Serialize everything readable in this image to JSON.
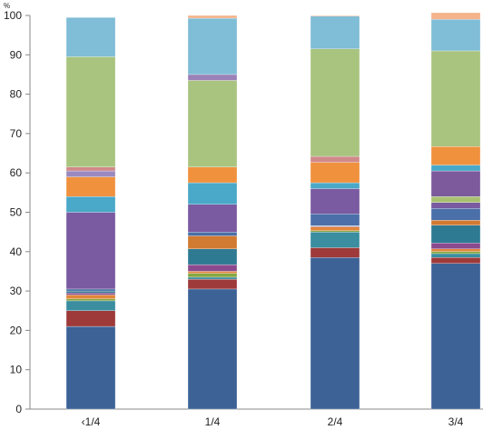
{
  "chart_data": {
    "type": "bar",
    "stacked": true,
    "unit": "%",
    "categories": [
      "‹1/4",
      "1/4",
      "2/4",
      "3/4"
    ],
    "ylim": [
      0,
      100
    ],
    "yticks": [
      0,
      10,
      20,
      30,
      40,
      50,
      60,
      70,
      80,
      90,
      100
    ],
    "grid": false,
    "legend": "none",
    "series": [
      {
        "color": "#3c6296",
        "values": [
          21.0,
          30.5,
          38.5,
          37.0
        ]
      },
      {
        "color": "#9e3a3a",
        "values": [
          4.0,
          2.5,
          2.5,
          1.5
        ]
      },
      {
        "color": "#3a8ea0",
        "values": [
          2.5,
          0.5,
          4.0,
          1.0
        ]
      },
      {
        "color": "#86a845",
        "values": [
          0.5,
          1.0,
          0.3,
          0.5
        ]
      },
      {
        "color": "#e0873a",
        "values": [
          1.0,
          0.5,
          1.0,
          0.7
        ]
      },
      {
        "color": "#8b4a8e",
        "values": [
          0.5,
          1.7,
          0.2,
          1.5
        ]
      },
      {
        "color": "#2f7a93",
        "values": [
          0.5,
          4.0,
          0.1,
          4.5
        ]
      },
      {
        "color": "#d07a32",
        "values": [
          0.0,
          3.3,
          0.0,
          1.3
        ]
      },
      {
        "color": "#4b6fa8",
        "values": [
          0.5,
          1.0,
          3.0,
          3.0
        ]
      },
      {
        "color": "#7a5aa0",
        "values": [
          19.5,
          7.0,
          6.4,
          1.5
        ]
      },
      {
        "color": "#a8c070",
        "values": [
          0.0,
          0.0,
          0.0,
          1.5
        ]
      },
      {
        "color": "#7d5a9c",
        "values": [
          0.0,
          0.0,
          0.0,
          6.5
        ]
      },
      {
        "color": "#4aa8c8",
        "values": [
          4.0,
          5.5,
          1.5,
          1.5
        ]
      },
      {
        "color": "#f0913e",
        "values": [
          5.0,
          4.0,
          5.2,
          4.7
        ]
      },
      {
        "color": "#9a8ac0",
        "values": [
          1.5,
          0.0,
          0.0,
          0.0
        ]
      },
      {
        "color": "#d08a8a",
        "values": [
          1.0,
          0.0,
          1.5,
          0.0
        ]
      },
      {
        "color": "#a9c47f",
        "values": [
          28.0,
          22.0,
          27.3,
          24.3
        ]
      },
      {
        "color": "#9a82b8",
        "values": [
          0.0,
          1.5,
          0.0,
          0.0
        ]
      },
      {
        "color": "#80bdd6",
        "values": [
          10.0,
          14.3,
          8.3,
          8.0
        ]
      },
      {
        "color": "#f4b38a",
        "values": [
          0.0,
          0.7,
          0.2,
          1.7
        ]
      }
    ]
  }
}
